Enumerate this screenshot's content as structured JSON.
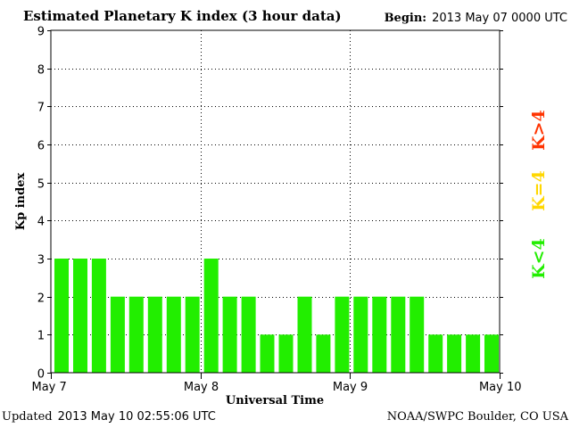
{
  "header": {
    "title": "Estimated Planetary K index (3 hour data)",
    "begin_label": "Begin:",
    "begin_value": "2013 May 07 0000 UTC"
  },
  "footer": {
    "updated_label": "Updated",
    "updated_value": "2013 May 10 02:55:06 UTC",
    "credit": "NOAA/SWPC Boulder, CO USA"
  },
  "colors": {
    "below_storm": "#22ee00",
    "storm_threshold": "#ffd700",
    "storm": "#ff3300",
    "gridline": "#000000"
  },
  "chart_data": {
    "type": "bar",
    "title": "Estimated Planetary K index (3 hour data)",
    "xlabel": "Universal Time",
    "ylabel": "Kp index",
    "ylim": [
      0,
      9
    ],
    "yticks": [
      "0",
      "1",
      "2",
      "3",
      "4",
      "5",
      "6",
      "7",
      "8",
      "9"
    ],
    "xticks": [
      "May 7",
      "May 8",
      "May 9",
      "May 10"
    ],
    "grid": true,
    "categories": [
      "May 7 00-03",
      "May 7 03-06",
      "May 7 06-09",
      "May 7 09-12",
      "May 7 12-15",
      "May 7 15-18",
      "May 7 18-21",
      "May 7 21-24",
      "May 8 00-03",
      "May 8 03-06",
      "May 8 06-09",
      "May 8 09-12",
      "May 8 12-15",
      "May 8 15-18",
      "May 8 18-21",
      "May 8 21-24",
      "May 9 00-03",
      "May 9 03-06",
      "May 9 06-09",
      "May 9 09-12",
      "May 9 12-15",
      "May 9 15-18",
      "May 9 18-21",
      "May 9 21-24"
    ],
    "values": [
      3,
      3,
      3,
      2,
      2,
      2,
      2,
      2,
      3,
      2,
      2,
      1,
      1,
      2,
      1,
      2,
      2,
      2,
      2,
      2,
      1,
      1,
      1,
      1
    ],
    "legend": [
      {
        "label": "K<4",
        "color": "#22ee00"
      },
      {
        "label": "K=4",
        "color": "#ffd700"
      },
      {
        "label": "K>4",
        "color": "#ff3300"
      }
    ],
    "legend_position": "right"
  }
}
